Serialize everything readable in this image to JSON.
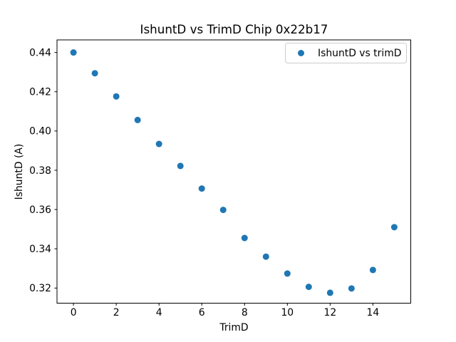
{
  "chart_data": {
    "type": "scatter",
    "title": "IshuntD vs TrimD Chip 0x22b17",
    "xlabel": "TrimD",
    "ylabel": "IshuntD (A)",
    "legend": [
      "IshuntD vs trimD"
    ],
    "legend_position": "upper right",
    "x": [
      0,
      1,
      2,
      3,
      4,
      5,
      6,
      7,
      8,
      9,
      10,
      11,
      12,
      13,
      14,
      15
    ],
    "y": [
      0.44,
      0.4294,
      0.4176,
      0.4056,
      0.3934,
      0.3822,
      0.3707,
      0.3598,
      0.3455,
      0.336,
      0.3274,
      0.3206,
      0.3176,
      0.3198,
      0.3292,
      0.351
    ],
    "xticks": [
      0,
      2,
      4,
      6,
      8,
      10,
      12,
      14
    ],
    "yticks": [
      0.32,
      0.34,
      0.36,
      0.38,
      0.4,
      0.42,
      0.44
    ],
    "xlim": [
      -0.77,
      15.77
    ],
    "ylim": [
      0.3123,
      0.4464
    ],
    "grid": false,
    "marker_color": "#1f77b4",
    "axis_color": "#000000",
    "text_color": "#000000",
    "legend_border_color": "#cccccc",
    "background_color": "#ffffff"
  }
}
